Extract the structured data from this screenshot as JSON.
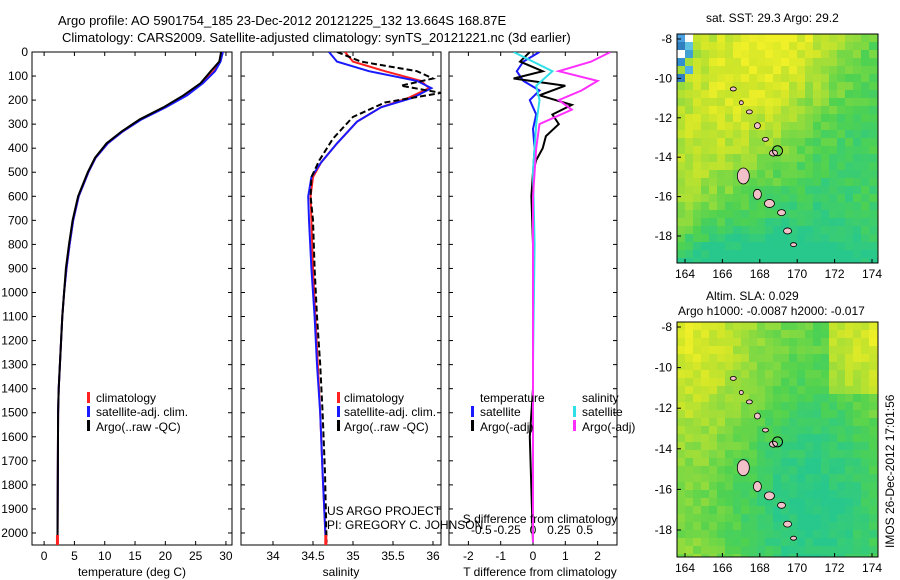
{
  "header": {
    "line1": "Argo profile: AO 5901754_185 23-Dec-2012 20121225_132 13.664S 168.87E",
    "line2": "Climatology: CARS2009. Satellite-adjusted climatology: synTS_20121221.nc (3d earlier)"
  },
  "map_top": {
    "title": "sat. SST: 29.3 Argo: 29.2",
    "xticks": [
      "164",
      "166",
      "168",
      "170",
      "172",
      "174"
    ],
    "yticks": [
      "-8",
      "-10",
      "-12",
      "-14",
      "-16",
      "-18"
    ]
  },
  "map_bottom": {
    "title1": "Altim. SLA: 0.029",
    "title2": "Argo h1000: -0.0087 h2000: -0.017",
    "xticks": [
      "164",
      "166",
      "168",
      "170",
      "172",
      "174"
    ],
    "yticks": [
      "-8",
      "-10",
      "-12",
      "-14",
      "-16",
      "-18"
    ]
  },
  "side_label": "IMOS 26-Dec-2012 17:01:56",
  "credits": {
    "line1": "US ARGO PROJECT",
    "line2": "PI: GREGORY C. JOHNSON"
  },
  "colors": {
    "climatology": "#ff2020",
    "satellite": "#1a1aff",
    "argo": "#000000",
    "sal_satellite": "#30e0e8",
    "sal_argo": "#ff30ff"
  },
  "chart_data": [
    {
      "type": "line",
      "xlabel": "temperature (deg C)",
      "ylabel": "",
      "xlim": [
        -2,
        31
      ],
      "ylim": [
        0,
        2050
      ],
      "y_reversed": true,
      "xticks": [
        "0",
        "5",
        "10",
        "15",
        "20",
        "25",
        "30"
      ],
      "yticks": [
        "0",
        "100",
        "200",
        "300",
        "400",
        "500",
        "600",
        "700",
        "800",
        "900",
        "1000",
        "1100",
        "1200",
        "1300",
        "1400",
        "1500",
        "1600",
        "1700",
        "1800",
        "1900",
        "2000"
      ],
      "legend": [
        "climatology",
        "satellite-adj. clim.",
        "Argo(..raw -QC)"
      ],
      "series": [
        {
          "name": "climatology",
          "color": "#ff2020",
          "x": [
            29.3,
            29.0,
            28.0,
            26.0,
            23.5,
            20.0,
            16.0,
            13.0,
            10.5,
            8.5,
            7.3,
            5.7,
            4.8,
            4.2,
            3.7,
            3.3,
            3.0,
            2.8,
            2.6,
            2.4,
            2.3,
            2.2
          ],
          "y": [
            0,
            40,
            80,
            130,
            180,
            230,
            280,
            330,
            380,
            440,
            500,
            600,
            700,
            800,
            900,
            1000,
            1100,
            1200,
            1300,
            1400,
            1500,
            2040
          ]
        },
        {
          "name": "satellite-adj. clim.",
          "color": "#1a1aff",
          "x": [
            29.5,
            29.1,
            28.2,
            26.2,
            23.6,
            20.1,
            16.1,
            13.0,
            10.5,
            8.5,
            7.3,
            5.7,
            4.8,
            4.2,
            3.7,
            3.3,
            3.0,
            2.8,
            2.6,
            2.4,
            2.3,
            2.2
          ],
          "y": [
            0,
            40,
            80,
            130,
            180,
            230,
            280,
            330,
            380,
            440,
            500,
            600,
            700,
            800,
            900,
            1000,
            1100,
            1200,
            1300,
            1400,
            1500,
            2040
          ]
        },
        {
          "name": "Argo(..raw -QC)",
          "color": "#000000",
          "x": [
            29.2,
            28.9,
            27.5,
            25.8,
            23.0,
            19.7,
            15.8,
            12.8,
            10.3,
            8.4,
            7.2,
            5.6,
            4.7,
            4.1,
            3.6,
            3.3,
            3.0,
            2.8,
            2.6,
            2.4,
            2.3,
            2.2
          ],
          "y": [
            0,
            40,
            80,
            130,
            180,
            230,
            280,
            330,
            380,
            440,
            500,
            600,
            700,
            800,
            900,
            1000,
            1100,
            1200,
            1300,
            1400,
            1500,
            2040
          ]
        }
      ]
    },
    {
      "type": "line",
      "xlabel": "salinity",
      "ylabel": "",
      "xlim": [
        33.6,
        36.1
      ],
      "ylim": [
        0,
        2050
      ],
      "y_reversed": true,
      "xticks": [
        "34",
        "34.5",
        "35",
        "35.5",
        "36"
      ],
      "legend": [
        "climatology",
        "satellite-adj. clim.",
        "Argo(..raw -QC)"
      ],
      "series": [
        {
          "name": "climatology",
          "color": "#ff2020",
          "x": [
            34.9,
            35.0,
            35.4,
            35.85,
            35.95,
            35.7,
            35.35,
            35.05,
            34.8,
            34.6,
            34.5,
            34.47,
            34.48,
            34.5,
            34.53,
            34.56,
            34.59,
            34.62,
            34.66
          ],
          "y": [
            0,
            40,
            80,
            120,
            150,
            190,
            230,
            290,
            380,
            460,
            520,
            600,
            700,
            900,
            1100,
            1300,
            1500,
            1750,
            2040
          ]
        },
        {
          "name": "satellite-adj. clim.",
          "color": "#1a1aff",
          "x": [
            34.7,
            34.8,
            35.2,
            35.8,
            35.98,
            35.75,
            35.35,
            35.05,
            34.8,
            34.6,
            34.48,
            34.44,
            34.45,
            34.48,
            34.52,
            34.55,
            34.59,
            34.62,
            34.66
          ],
          "y": [
            0,
            40,
            80,
            120,
            150,
            190,
            230,
            290,
            380,
            460,
            520,
            600,
            700,
            900,
            1100,
            1300,
            1500,
            1750,
            2040
          ]
        },
        {
          "name": "Argo(..raw -QC)",
          "color": "#000000",
          "x": [
            34.8,
            35.1,
            35.8,
            36.0,
            35.6,
            36.1,
            35.4,
            35.0,
            34.75,
            34.58,
            34.48,
            34.47,
            34.5,
            34.52,
            34.55,
            34.59,
            34.62,
            34.65,
            34.67
          ],
          "y": [
            0,
            40,
            80,
            110,
            140,
            170,
            210,
            270,
            360,
            450,
            520,
            600,
            700,
            900,
            1100,
            1300,
            1500,
            1750,
            2040
          ]
        }
      ]
    },
    {
      "type": "line",
      "xlabel": "T difference from climatology",
      "xlabel2": "S difference from climatology",
      "xlim": [
        -2.6,
        2.6
      ],
      "ylim": [
        0,
        2050
      ],
      "y_reversed": true,
      "xticks_T": [
        "-2",
        "-1",
        "0",
        "1",
        "2"
      ],
      "xticks_S": [
        "-0.5",
        "-0.25",
        "0",
        "0.25",
        "0.5"
      ],
      "legend_temperature": [
        "temperature",
        "satellite",
        "Argo(-adj)"
      ],
      "legend_salinity": [
        "salinity",
        "satellite",
        "Argo(-adj)"
      ],
      "series": [
        {
          "name": "satellite",
          "color": "#1a1aff",
          "x": [
            0.2,
            -0.3,
            -0.5,
            -0.3,
            0.2,
            -0.1,
            0.1,
            0.0,
            0.05,
            0.0,
            0.0,
            0.0,
            0.0,
            0.0
          ],
          "y": [
            0,
            40,
            80,
            120,
            160,
            200,
            260,
            320,
            400,
            500,
            700,
            1000,
            1500,
            2040
          ]
        },
        {
          "name": "Argo(-adj)",
          "color": "#000000",
          "x": [
            -0.1,
            -0.4,
            0.3,
            -0.6,
            1.0,
            0.2,
            1.2,
            0.6,
            0.8,
            0.4,
            0.3,
            0.1,
            0.0,
            -0.05,
            0.0,
            0.0,
            0.0,
            -0.1,
            0.0
          ],
          "y": [
            0,
            40,
            80,
            110,
            140,
            180,
            220,
            260,
            300,
            350,
            400,
            450,
            500,
            600,
            800,
            1100,
            1400,
            1600,
            2040
          ]
        },
        {
          "name": "satellite",
          "color": "#30e0e8",
          "x": [
            -0.6,
            0.0,
            0.6,
            0.1,
            0.2,
            0.1,
            0.0,
            0.05,
            0.0,
            0.0
          ],
          "y": [
            0,
            40,
            80,
            140,
            200,
            300,
            500,
            800,
            1300,
            2040
          ]
        },
        {
          "name": "Argo(-adj)",
          "color": "#ff30ff",
          "x": [
            2.4,
            1.8,
            0.8,
            2.0,
            1.5,
            0.8,
            1.2,
            0.2,
            0.1,
            0.0,
            0.0,
            0.0
          ],
          "y": [
            0,
            40,
            80,
            120,
            160,
            200,
            240,
            300,
            400,
            600,
            1000,
            2040
          ]
        }
      ]
    }
  ]
}
